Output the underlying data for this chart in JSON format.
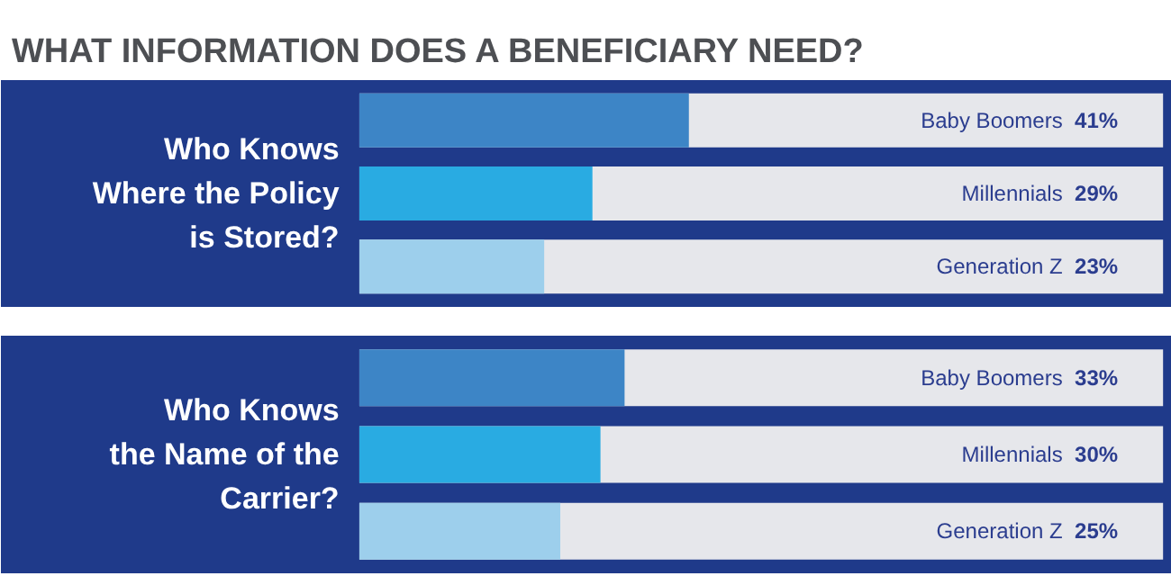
{
  "chart_data": [
    {
      "type": "bar",
      "orientation": "horizontal",
      "title": "WHAT INFORMATION DOES A BENEFICIARY NEED?",
      "subtitle": "Who Knows\nWhere the Policy\nis Stored?",
      "categories": [
        "Baby Boomers",
        "Millennials",
        "Generation Z"
      ],
      "values": [
        41,
        29,
        23
      ],
      "value_labels": [
        "41%",
        "29%",
        "23%"
      ],
      "colors": [
        "#3d85c6",
        "#29abe2",
        "#9dcfec"
      ],
      "xlim": [
        0,
        100
      ],
      "tick_labels": false,
      "grid": false
    },
    {
      "type": "bar",
      "orientation": "horizontal",
      "subtitle": "Who Knows\nthe Name of the\nCarrier?",
      "categories": [
        "Baby Boomers",
        "Millennials",
        "Generation Z"
      ],
      "values": [
        33,
        30,
        25
      ],
      "value_labels": [
        "33%",
        "30%",
        "25%"
      ],
      "colors": [
        "#3d85c6",
        "#29abe2",
        "#9dcfec"
      ],
      "xlim": [
        0,
        100
      ],
      "tick_labels": false,
      "grid": false
    }
  ]
}
